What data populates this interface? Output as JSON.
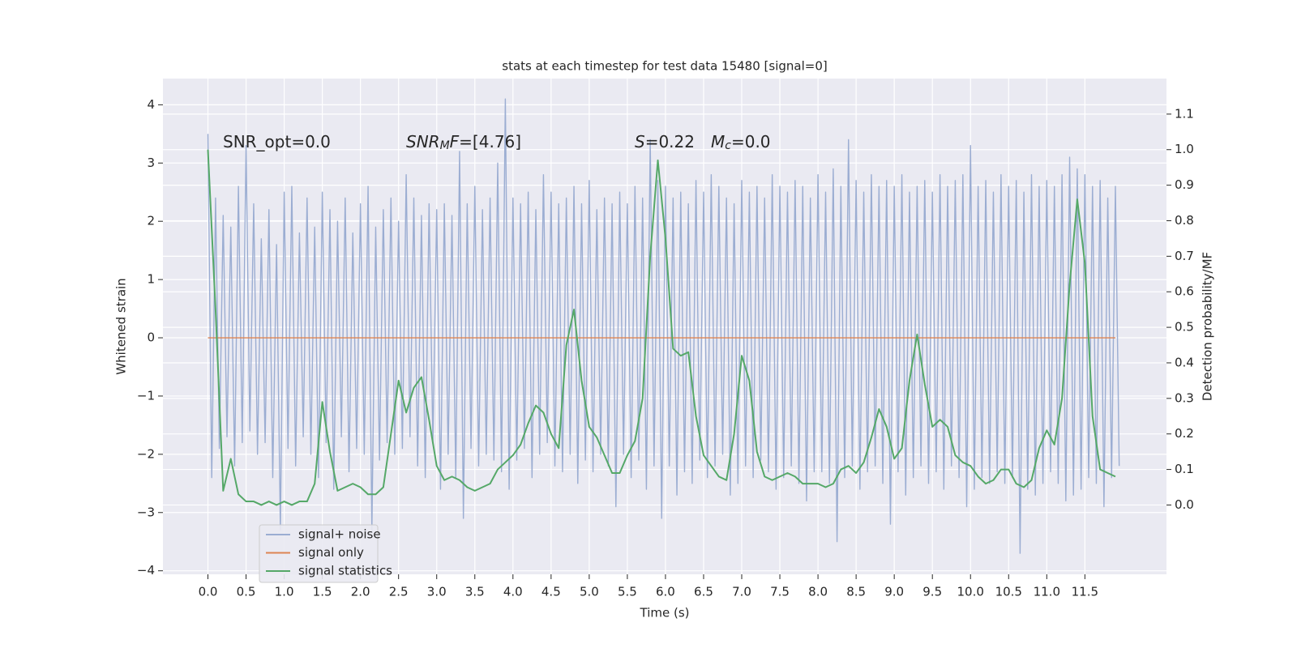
{
  "chart_data": {
    "type": "line",
    "title": "stats at each timestep for test data 15480 [signal=0]",
    "x_label": "Time (s)",
    "y_label": "Whitened strain",
    "y2_label": "Detection probability/MF",
    "grid": true,
    "legend": "lower left",
    "xlim": [
      -0.59,
      12.57
    ],
    "ylim": [
      -4.06,
      4.45
    ],
    "y2lim": [
      -0.195,
      1.2
    ],
    "xticks": [
      {
        "value": 0,
        "label": "0.0"
      },
      0.5,
      {
        "value": 1,
        "label": "1.0"
      },
      1.5,
      {
        "value": 2,
        "label": "2.0"
      },
      2.5,
      {
        "value": 3,
        "label": "3.0"
      },
      3.5,
      {
        "value": 4,
        "label": "4.0"
      },
      4.5,
      {
        "value": 5,
        "label": "5.0"
      },
      5.5,
      {
        "value": 6,
        "label": "6.0"
      },
      6.5,
      {
        "value": 7,
        "label": "7.0"
      },
      7.5,
      {
        "value": 8,
        "label": "8.0"
      },
      8.5,
      {
        "value": 9,
        "label": "9.0"
      },
      9.5,
      {
        "value": 10,
        "label": "10.0"
      },
      10.5,
      {
        "value": 11,
        "label": "11.0"
      },
      11.5
    ],
    "yticks": [
      {
        "value": -4,
        "label": "−4"
      },
      {
        "value": -3,
        "label": "−3"
      },
      {
        "value": -2,
        "label": "−2"
      },
      {
        "value": -1,
        "label": "−1"
      },
      0,
      1,
      2,
      3,
      4
    ],
    "y2ticks": [
      {
        "value": 0,
        "label": "0.0"
      },
      0.1,
      0.2,
      0.3,
      0.4,
      0.5,
      0.6,
      0.7,
      0.8,
      0.9,
      {
        "value": 1,
        "label": "1.0"
      },
      1.1
    ],
    "annotations": [
      [
        {
          "text": "SNR_opt=0.0"
        }
      ],
      [
        {
          "text": "SNR",
          "style": "italic"
        },
        {
          "text": "M",
          "style": "italic-sub"
        },
        {
          "text": "F",
          "style": "italic"
        },
        {
          "text": "=[4.76]"
        }
      ],
      [
        {
          "text": "S",
          "style": "italic"
        },
        {
          "text": "=0.22"
        }
      ],
      [
        {
          "text": "M",
          "style": "italic"
        },
        {
          "text": "c",
          "style": "italic-sub"
        },
        {
          "text": "=0.0"
        }
      ]
    ],
    "x": [
      0,
      0.1,
      0.2,
      0.3,
      0.4,
      0.5,
      0.6,
      0.7,
      0.8,
      0.9,
      1,
      1.1,
      1.2,
      1.3,
      1.4,
      1.5,
      1.6,
      1.7,
      1.8,
      1.9,
      2,
      2.1,
      2.2,
      2.3,
      2.4,
      2.5,
      2.6,
      2.7,
      2.8,
      2.9,
      3,
      3.1,
      3.2,
      3.3,
      3.4,
      3.5,
      3.6,
      3.7,
      3.8,
      3.9,
      4,
      4.1,
      4.2,
      4.3,
      4.4,
      4.5,
      4.6,
      4.7,
      4.8,
      4.9,
      5,
      5.1,
      5.2,
      5.3,
      5.4,
      5.5,
      5.6,
      5.7,
      5.8,
      5.9,
      6,
      6.1,
      6.2,
      6.3,
      6.4,
      6.5,
      6.6,
      6.7,
      6.8,
      6.9,
      7,
      7.1,
      7.2,
      7.3,
      7.4,
      7.5,
      7.6,
      7.7,
      7.8,
      7.9,
      8,
      8.1,
      8.2,
      8.3,
      8.4,
      8.5,
      8.6,
      8.7,
      8.8,
      8.9,
      9,
      9.1,
      9.2,
      9.3,
      9.4,
      9.5,
      9.6,
      9.7,
      9.8,
      9.9,
      10,
      10.1,
      10.2,
      10.3,
      10.4,
      10.5,
      10.6,
      10.7,
      10.8,
      10.9,
      11,
      11.1,
      11.2,
      11.3,
      11.4,
      11.5,
      11.6,
      11.7,
      11.8,
      11.9
    ],
    "series": [
      {
        "name": "signal+ noise",
        "color": "#9badd2",
        "x": [
          0,
          0.05,
          0.1,
          0.15,
          0.2,
          0.25,
          0.3,
          0.35,
          0.4,
          0.45,
          0.5,
          0.55,
          0.6,
          0.65,
          0.7,
          0.75,
          0.8,
          0.85,
          0.9,
          0.95,
          1,
          1.05,
          1.1,
          1.15,
          1.2,
          1.25,
          1.3,
          1.35,
          1.4,
          1.45,
          1.5,
          1.55,
          1.6,
          1.65,
          1.7,
          1.75,
          1.8,
          1.85,
          1.9,
          1.95,
          2,
          2.05,
          2.1,
          2.15,
          2.2,
          2.25,
          2.3,
          2.35,
          2.4,
          2.45,
          2.5,
          2.55,
          2.6,
          2.65,
          2.7,
          2.75,
          2.8,
          2.85,
          2.9,
          2.95,
          3,
          3.05,
          3.1,
          3.15,
          3.2,
          3.25,
          3.3,
          3.35,
          3.4,
          3.45,
          3.5,
          3.55,
          3.6,
          3.65,
          3.7,
          3.75,
          3.8,
          3.85,
          3.9,
          3.95,
          4,
          4.05,
          4.1,
          4.15,
          4.2,
          4.25,
          4.3,
          4.35,
          4.4,
          4.45,
          4.5,
          4.55,
          4.6,
          4.65,
          4.7,
          4.75,
          4.8,
          4.85,
          4.9,
          4.95,
          5,
          5.05,
          5.1,
          5.15,
          5.2,
          5.25,
          5.3,
          5.35,
          5.4,
          5.45,
          5.5,
          5.55,
          5.6,
          5.65,
          5.7,
          5.75,
          5.8,
          5.85,
          5.9,
          5.95,
          6,
          6.05,
          6.1,
          6.15,
          6.2,
          6.25,
          6.3,
          6.35,
          6.4,
          6.45,
          6.5,
          6.55,
          6.6,
          6.65,
          6.7,
          6.75,
          6.8,
          6.85,
          6.9,
          6.95,
          7,
          7.05,
          7.1,
          7.15,
          7.2,
          7.25,
          7.3,
          7.35,
          7.4,
          7.45,
          7.5,
          7.55,
          7.6,
          7.65,
          7.7,
          7.75,
          7.8,
          7.85,
          7.9,
          7.95,
          8,
          8.05,
          8.1,
          8.15,
          8.2,
          8.25,
          8.3,
          8.35,
          8.4,
          8.45,
          8.5,
          8.55,
          8.6,
          8.65,
          8.7,
          8.75,
          8.8,
          8.85,
          8.9,
          8.95,
          9,
          9.05,
          9.1,
          9.15,
          9.2,
          9.25,
          9.3,
          9.35,
          9.4,
          9.45,
          9.5,
          9.55,
          9.6,
          9.65,
          9.7,
          9.75,
          9.8,
          9.85,
          9.9,
          9.95,
          10,
          10.05,
          10.1,
          10.15,
          10.2,
          10.25,
          10.3,
          10.35,
          10.4,
          10.45,
          10.5,
          10.55,
          10.6,
          10.65,
          10.7,
          10.75,
          10.8,
          10.85,
          10.9,
          10.95,
          11,
          11.05,
          11.1,
          11.15,
          11.2,
          11.25,
          11.3,
          11.35,
          11.4,
          11.45,
          11.5,
          11.55,
          11.6,
          11.65,
          11.7,
          11.75,
          11.8,
          11.85,
          11.9,
          11.95
        ],
        "values": [
          3.5,
          -2.4,
          2.4,
          -1.9,
          2.1,
          -1.7,
          1.9,
          -2.2,
          2.6,
          -1.8,
          3.3,
          -1.6,
          2.3,
          -2.0,
          1.7,
          -1.8,
          2.2,
          -2.4,
          1.6,
          -3.3,
          2.5,
          -1.9,
          2.6,
          -2.2,
          1.8,
          -1.7,
          2.4,
          -2.0,
          1.9,
          -2.4,
          2.5,
          -1.8,
          2.2,
          -2.6,
          2.0,
          -1.7,
          2.4,
          -2.3,
          1.8,
          -1.9,
          2.3,
          -2.0,
          2.6,
          -3.3,
          1.9,
          -2.1,
          2.2,
          -1.8,
          2.4,
          -2.0,
          2.0,
          -1.9,
          2.8,
          -1.7,
          2.4,
          -2.2,
          2.1,
          -2.4,
          2.3,
          -1.8,
          2.2,
          -2.6,
          2.3,
          -2.0,
          2.1,
          -2.4,
          3.2,
          -3.1,
          2.3,
          -1.9,
          2.6,
          -2.2,
          2.2,
          -2.0,
          2.4,
          -2.1,
          3.0,
          -2.3,
          4.1,
          -2.6,
          2.4,
          -2.1,
          2.3,
          -1.9,
          2.5,
          -2.4,
          2.2,
          -2.0,
          2.8,
          -1.8,
          2.5,
          -2.2,
          2.3,
          -2.3,
          2.4,
          -2.0,
          2.6,
          -2.5,
          2.3,
          -2.1,
          2.7,
          -2.3,
          2.2,
          -2.0,
          2.4,
          -2.2,
          2.3,
          -2.9,
          2.5,
          -2.0,
          2.3,
          -2.4,
          2.6,
          -2.1,
          2.4,
          -2.6,
          3.4,
          -2.2,
          2.7,
          -3.1,
          2.6,
          -2.2,
          2.4,
          -2.7,
          2.5,
          -2.3,
          2.3,
          -2.5,
          2.7,
          -2.1,
          2.5,
          -2.4,
          2.8,
          -2.2,
          2.6,
          -2.0,
          2.4,
          -2.7,
          2.3,
          -2.5,
          2.7,
          -2.2,
          2.5,
          -2.4,
          2.6,
          -2.1,
          2.4,
          -2.3,
          2.8,
          -2.6,
          2.6,
          -2.4,
          2.5,
          -2.2,
          2.7,
          -2.5,
          2.6,
          -2.8,
          2.4,
          -2.3,
          2.8,
          -2.3,
          2.5,
          -2.5,
          2.9,
          -3.5,
          2.6,
          -2.4,
          3.4,
          -2.2,
          2.7,
          -2.6,
          2.5,
          -2.3,
          2.8,
          -2.2,
          2.6,
          -2.5,
          2.7,
          -3.2,
          2.6,
          -2.3,
          2.8,
          -2.7,
          2.5,
          -2.4,
          2.6,
          -2.2,
          2.7,
          -2.5,
          2.5,
          -2.3,
          2.8,
          -2.6,
          2.6,
          -2.2,
          2.7,
          -2.4,
          2.8,
          -2.9,
          3.3,
          -2.6,
          2.6,
          -2.4,
          2.7,
          -2.5,
          2.5,
          -2.3,
          2.8,
          -2.5,
          2.6,
          -2.4,
          2.7,
          -3.7,
          2.5,
          -2.6,
          2.8,
          -2.7,
          2.6,
          -2.5,
          2.7,
          -2.3,
          2.6,
          -2.5,
          2.8,
          -2.8,
          3.1,
          -2.7,
          2.9,
          -2.6,
          2.8,
          -2.4,
          2.6,
          -2.5,
          2.7,
          -2.9,
          2.4,
          -2.4,
          2.6,
          -2.2
        ]
      },
      {
        "name": "signal only",
        "color": "#dd8452",
        "values": [
          0,
          0,
          0,
          0,
          0,
          0,
          0,
          0,
          0,
          0,
          0,
          0,
          0,
          0,
          0,
          0,
          0,
          0,
          0,
          0,
          0,
          0,
          0,
          0,
          0,
          0,
          0,
          0,
          0,
          0,
          0,
          0,
          0,
          0,
          0,
          0,
          0,
          0,
          0,
          0,
          0,
          0,
          0,
          0,
          0,
          0,
          0,
          0,
          0,
          0,
          0,
          0,
          0,
          0,
          0,
          0,
          0,
          0,
          0,
          0,
          0,
          0,
          0,
          0,
          0,
          0,
          0,
          0,
          0,
          0,
          0,
          0,
          0,
          0,
          0,
          0,
          0,
          0,
          0,
          0,
          0,
          0,
          0,
          0,
          0,
          0,
          0,
          0,
          0,
          0,
          0,
          0,
          0,
          0,
          0,
          0,
          0,
          0,
          0,
          0,
          0,
          0,
          0,
          0,
          0,
          0,
          0,
          0,
          0,
          0,
          0,
          0,
          0,
          0,
          0,
          0,
          0,
          0,
          0,
          0
        ]
      },
      {
        "name": "signal statistics",
        "color": "#55a868",
        "axis": "y2",
        "values": [
          1.0,
          0.55,
          0.04,
          0.13,
          0.03,
          0.01,
          0.01,
          0.0,
          0.01,
          0.0,
          0.01,
          0.0,
          0.01,
          0.01,
          0.06,
          0.29,
          0.15,
          0.04,
          0.05,
          0.06,
          0.05,
          0.03,
          0.03,
          0.05,
          0.2,
          0.35,
          0.26,
          0.33,
          0.36,
          0.24,
          0.11,
          0.07,
          0.08,
          0.07,
          0.05,
          0.04,
          0.05,
          0.06,
          0.1,
          0.12,
          0.14,
          0.17,
          0.23,
          0.28,
          0.26,
          0.2,
          0.16,
          0.45,
          0.55,
          0.35,
          0.22,
          0.19,
          0.14,
          0.09,
          0.09,
          0.14,
          0.18,
          0.3,
          0.7,
          0.97,
          0.75,
          0.44,
          0.42,
          0.43,
          0.25,
          0.14,
          0.11,
          0.08,
          0.07,
          0.2,
          0.42,
          0.35,
          0.15,
          0.08,
          0.07,
          0.08,
          0.09,
          0.08,
          0.06,
          0.06,
          0.06,
          0.05,
          0.06,
          0.1,
          0.11,
          0.09,
          0.12,
          0.19,
          0.27,
          0.22,
          0.13,
          0.16,
          0.35,
          0.48,
          0.34,
          0.22,
          0.24,
          0.22,
          0.14,
          0.12,
          0.11,
          0.08,
          0.06,
          0.07,
          0.1,
          0.1,
          0.06,
          0.05,
          0.07,
          0.16,
          0.21,
          0.17,
          0.3,
          0.62,
          0.86,
          0.68,
          0.25,
          0.1,
          0.09,
          0.08
        ]
      }
    ]
  }
}
